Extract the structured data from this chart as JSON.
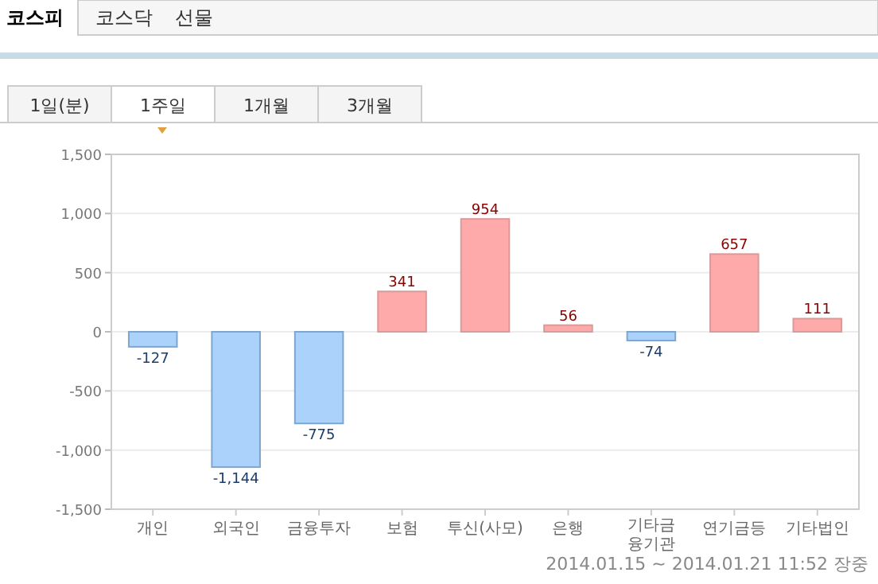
{
  "chart_data": {
    "type": "bar",
    "categories": [
      "개인",
      "외국인",
      "금융투자",
      "보험",
      "투신(사모)",
      "은행",
      "기타금융기관",
      "연기금등",
      "기타법인"
    ],
    "values": [
      -127,
      -1144,
      -775,
      341,
      954,
      56,
      -74,
      657,
      111
    ],
    "value_labels": [
      "-127",
      "-1,144",
      "-775",
      "341",
      "954",
      "56",
      "-74",
      "657",
      "111"
    ],
    "colors": [
      "#aad2fb",
      "#aad2fb",
      "#aad2fb",
      "#ffaaaa",
      "#ffaaaa",
      "#ffaaaa",
      "#aad2fb",
      "#ffaaaa",
      "#ffaaaa"
    ],
    "ylim": [
      -1500,
      1500
    ],
    "yticks": [
      {
        "value": -1500,
        "label": "-1,500"
      },
      {
        "value": -1000,
        "label": "-1,000"
      },
      {
        "value": -500,
        "label": "-500"
      },
      0,
      500,
      {
        "value": 1000,
        "label": "1,000"
      },
      {
        "value": 1500,
        "label": "1,500"
      }
    ],
    "grid": "y",
    "annotations": [
      "코스피",
      "코스닥",
      "선물",
      "1일(분)",
      "1주일",
      "1개월",
      "3개월",
      "2014.01.15 ~ 2014.01.21 11:52 장중"
    ]
  }
}
